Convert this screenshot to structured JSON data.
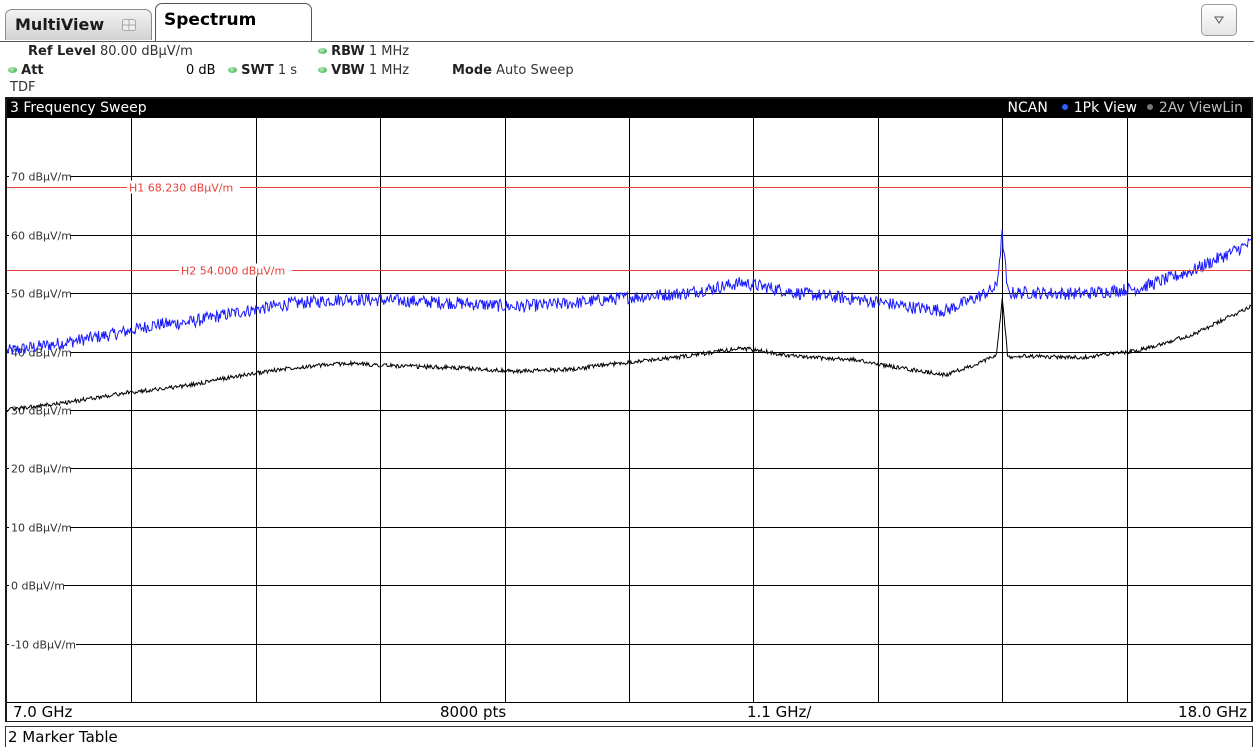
{
  "tabs": {
    "multiview_label": "MultiView",
    "spectrum_label": "Spectrum"
  },
  "settings": {
    "ref_level_label": "Ref Level",
    "ref_level_value": "80.00 dBµV/m",
    "att_label": "Att",
    "att_value": "0 dB",
    "swt_label": "SWT",
    "swt_value": "1 s",
    "rbw_label": "RBW",
    "rbw_value": "1 MHz",
    "vbw_label": "VBW",
    "vbw_value": "1 MHz",
    "mode_label": "Mode",
    "mode_value": "Auto Sweep",
    "transducer": "TDF"
  },
  "diagram": {
    "title": "3 Frequency Sweep",
    "tag_ncan": "NCAN",
    "trace1_tag": "1Pk View",
    "trace2_tag": "2Av ViewLin",
    "footer_start": "7.0 GHz",
    "footer_points": "8000 pts",
    "footer_span": "1.1 GHz/",
    "footer_stop": "18.0 GHz"
  },
  "marker_table": {
    "title": "2 Marker Table"
  },
  "colors": {
    "trace1": "#1a1aff",
    "trace2": "#000000",
    "limit_lines": "#e8403a",
    "grid": "#000000"
  },
  "chart_data": {
    "type": "line",
    "x_unit": "GHz",
    "y_unit": "dBµV/m",
    "xlim": [
      7.0,
      18.0
    ],
    "ylim": [
      -20,
      80
    ],
    "y_ticks": [
      70,
      60,
      50,
      40,
      30,
      20,
      10,
      0,
      -10
    ],
    "y_tick_labels": [
      "70 dBµV/m",
      "60 dBµV/m",
      "50 dBµV/m",
      "40 dBµV/m",
      "30 dBµV/m",
      "20 dBµV/m",
      "10 dBµV/m",
      "0 dBµV/m",
      "-10 dBµV/m"
    ],
    "grid": true,
    "hlines": [
      {
        "name": "H1",
        "value": 68.23,
        "label": "H1  68.230 dBµV/m"
      },
      {
        "name": "H2",
        "value": 54.0,
        "label": "H2  54.000 dBµV/m"
      }
    ],
    "series": [
      {
        "name": "1Pk View",
        "x": [
          7.0,
          7.5,
          8.0,
          8.3,
          8.6,
          9.0,
          9.5,
          10.0,
          10.5,
          11.0,
          11.5,
          12.0,
          12.5,
          13.0,
          13.5,
          14.0,
          14.5,
          14.8,
          15.0,
          15.3,
          15.6,
          15.75,
          15.8,
          15.85,
          16.0,
          16.5,
          17.0,
          17.5,
          18.0
        ],
        "values": [
          40.1,
          41.5,
          43.2,
          44.6,
          45.0,
          46.6,
          48.2,
          49.0,
          48.7,
          48.3,
          47.7,
          48.3,
          49.3,
          50.0,
          51.8,
          50.0,
          49.0,
          48.2,
          47.6,
          47.0,
          49.5,
          51.0,
          60.0,
          50.0,
          50.1,
          49.9,
          50.8,
          54.0,
          58.6
        ]
      },
      {
        "name": "2Av ViewLin",
        "x": [
          7.0,
          7.5,
          8.0,
          8.3,
          8.6,
          9.0,
          9.5,
          10.0,
          10.5,
          11.0,
          11.5,
          12.0,
          12.5,
          13.0,
          13.5,
          14.0,
          14.5,
          14.8,
          15.0,
          15.3,
          15.6,
          15.75,
          15.8,
          15.85,
          16.0,
          16.5,
          17.0,
          17.5,
          18.0
        ],
        "values": [
          30.0,
          31.2,
          32.8,
          33.5,
          34.2,
          35.7,
          37.2,
          38.0,
          37.5,
          37.2,
          36.6,
          37.0,
          38.2,
          39.2,
          40.6,
          39.1,
          38.6,
          37.5,
          36.9,
          36.0,
          38.0,
          39.4,
          49.0,
          39.0,
          39.2,
          39.0,
          40.2,
          43.0,
          47.8
        ]
      }
    ]
  }
}
